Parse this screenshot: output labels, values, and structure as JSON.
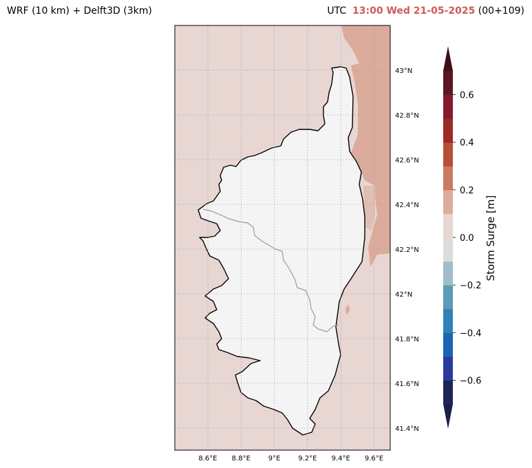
{
  "header": {
    "left_title": "WRF (10 km) + Delft3D (3km)",
    "utc_label": "UTC",
    "timestamp": "13:00 Wed 21-05-2025",
    "lead": "(00+109)"
  },
  "map": {
    "region": "Corsica",
    "lon_range": [
      8.42,
      9.7
    ],
    "lat_range": [
      41.3,
      43.2
    ],
    "grid": true,
    "lat_ticks": [
      "43°N",
      "42.8°N",
      "42.6°N",
      "42.4°N",
      "42.2°N",
      "42°N",
      "41.8°N",
      "41.6°N",
      "41.4°N"
    ],
    "lon_ticks": [
      "8.6°E",
      "8.8°E",
      "9°E",
      "9.2°E",
      "9.4°E",
      "9.6°E"
    ],
    "sea_color": "#e8d6d3",
    "surge_high_color": "#dbab9b",
    "land_color": "#f4f4f4"
  },
  "colorbar": {
    "label": "Storm Surge [m]",
    "range": [
      -0.7,
      0.7
    ],
    "step": 0.1,
    "ticks": [
      "0.6",
      "0.4",
      "0.2",
      "0.0",
      "−0.2",
      "−0.4",
      "−0.6"
    ],
    "colors": [
      "#1f2555",
      "#2a3c99",
      "#1b63b6",
      "#2f82b7",
      "#5a9cb9",
      "#a1bccb",
      "#dcdcdc",
      "#e8d6d3",
      "#dcac9c",
      "#cc7a63",
      "#b64f34",
      "#9e2a26",
      "#841a30",
      "#5c1624"
    ],
    "extend_low": "#1d1f45",
    "extend_high": "#3e0f18"
  }
}
